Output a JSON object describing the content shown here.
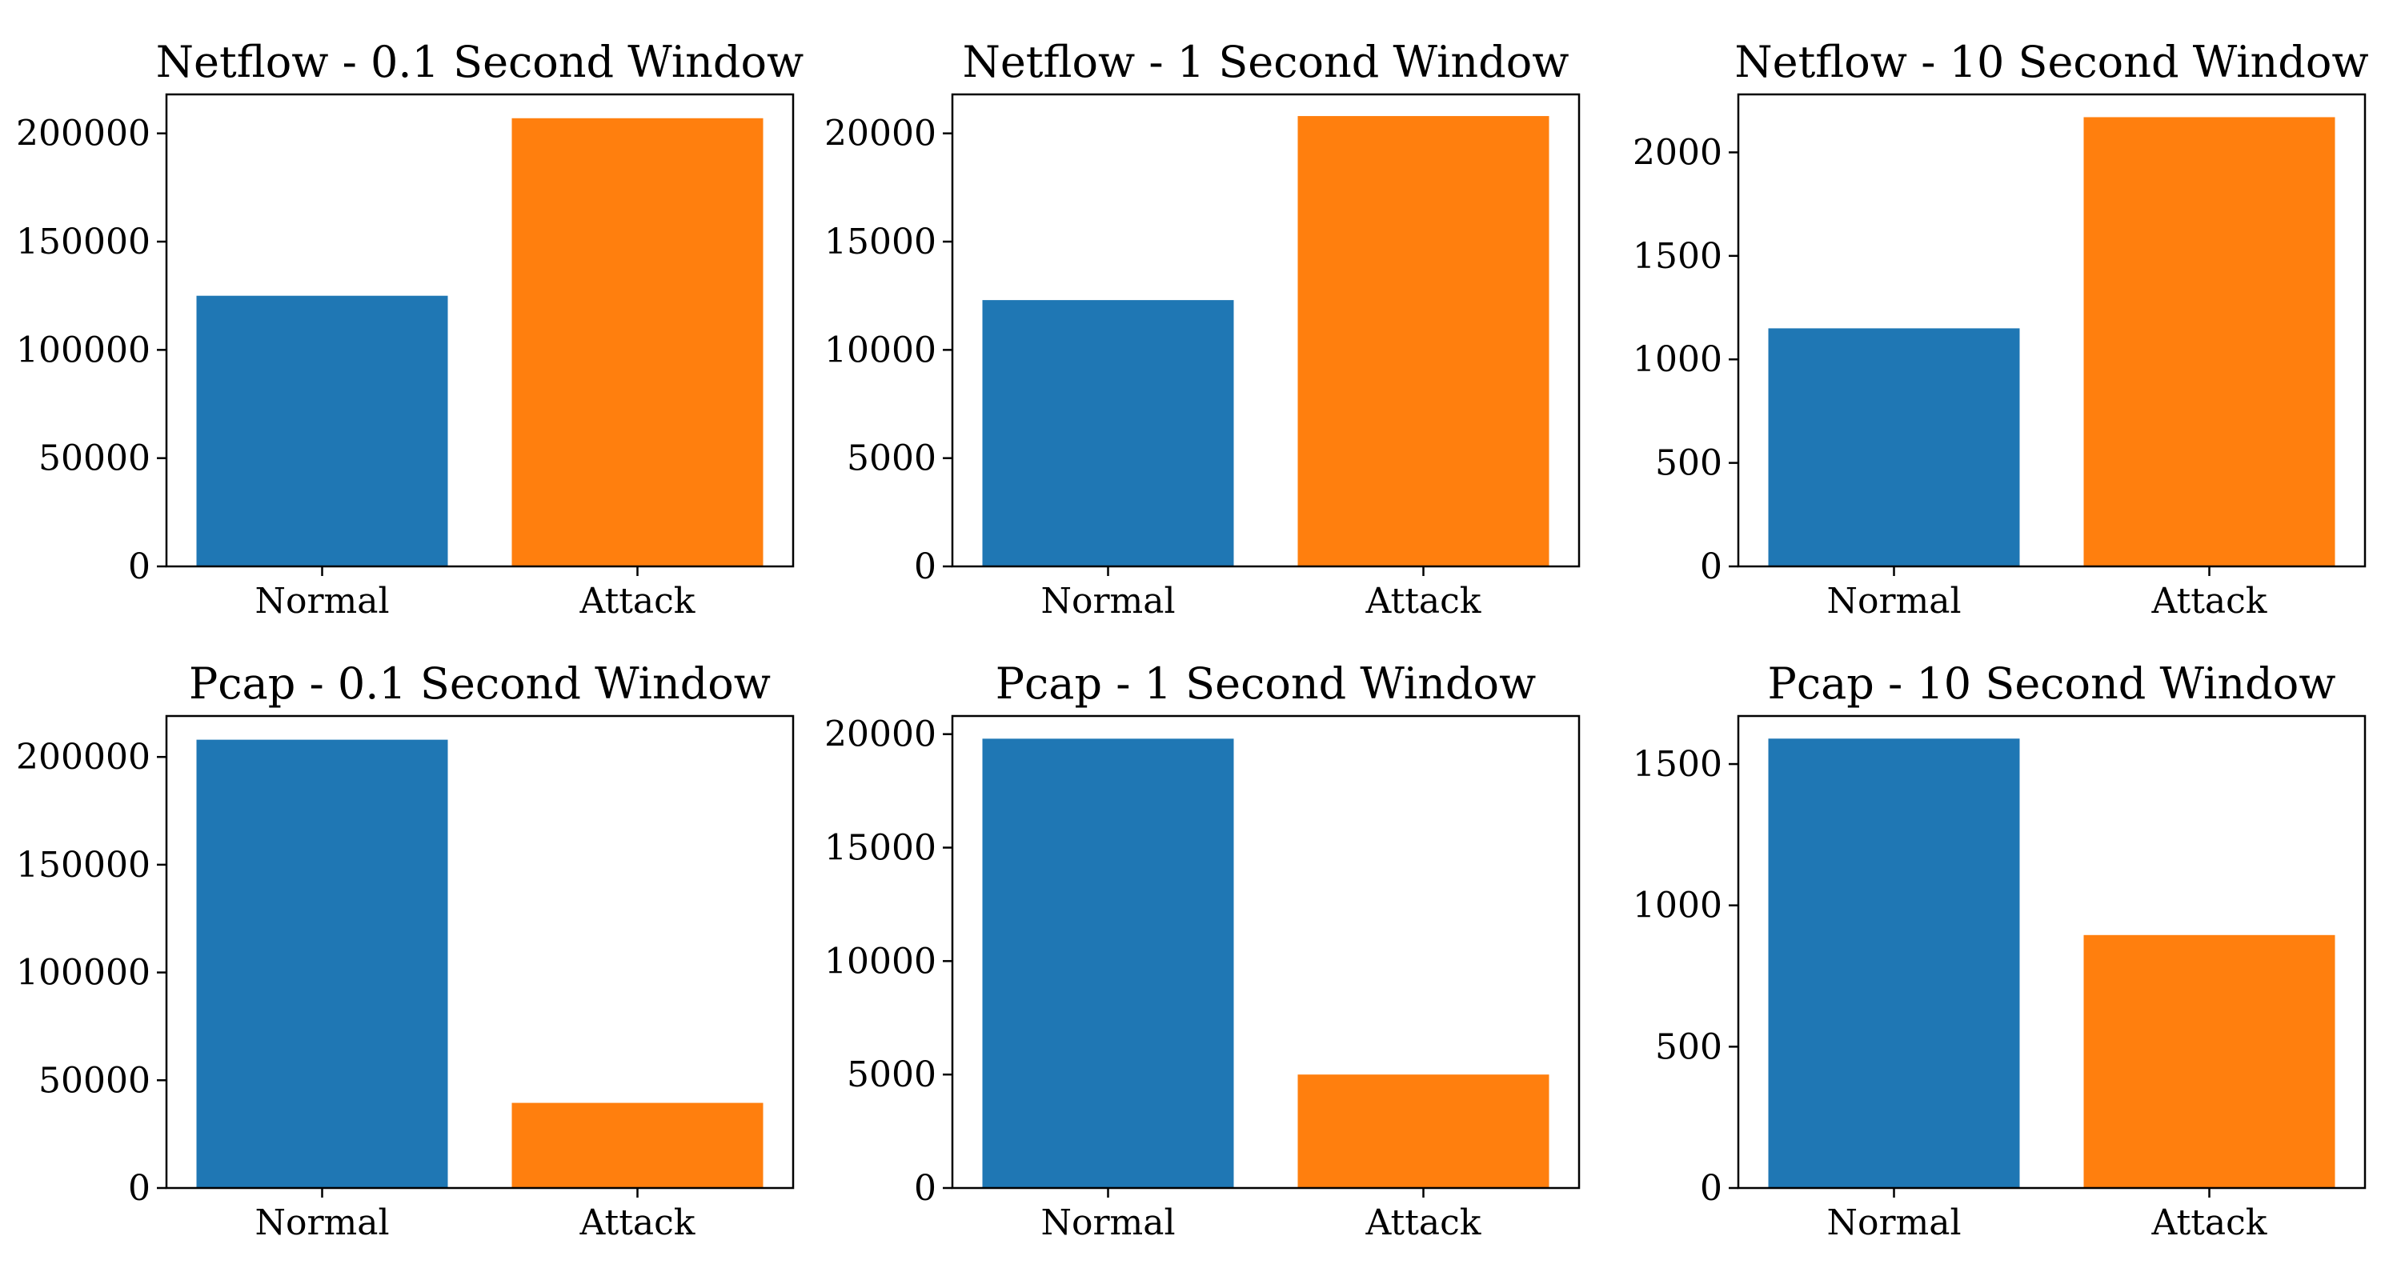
{
  "colors": {
    "normal": "#1f77b4",
    "attack": "#ff7f0e"
  },
  "chart_data": [
    {
      "type": "bar",
      "title": "Netflow - 0.1 Second Window",
      "categories": [
        "Normal",
        "Attack"
      ],
      "values": [
        125000,
        207000
      ],
      "ylim": [
        0,
        218000
      ],
      "yticks": [
        0,
        50000,
        100000,
        150000,
        200000
      ],
      "ytick_labels": [
        "0",
        "50000",
        "100000",
        "150000",
        "200000"
      ],
      "grid": false
    },
    {
      "type": "bar",
      "title": "Netflow - 1 Second Window",
      "categories": [
        "Normal",
        "Attack"
      ],
      "values": [
        12300,
        20800
      ],
      "ylim": [
        0,
        21800
      ],
      "yticks": [
        0,
        5000,
        10000,
        15000,
        20000
      ],
      "ytick_labels": [
        "0",
        "5000",
        "10000",
        "15000",
        "20000"
      ],
      "grid": false
    },
    {
      "type": "bar",
      "title": "Netflow - 10 Second Window",
      "categories": [
        "Normal",
        "Attack"
      ],
      "values": [
        1150,
        2170
      ],
      "ylim": [
        0,
        2280
      ],
      "yticks": [
        0,
        500,
        1000,
        1500,
        2000
      ],
      "ytick_labels": [
        "0",
        "500",
        "1000",
        "1500",
        "2000"
      ],
      "grid": false
    },
    {
      "type": "bar",
      "title": "Pcap - 0.1 Second Window",
      "categories": [
        "Normal",
        "Attack"
      ],
      "values": [
        208000,
        39500
      ],
      "ylim": [
        0,
        219000
      ],
      "yticks": [
        0,
        50000,
        100000,
        150000,
        200000
      ],
      "ytick_labels": [
        "0",
        "50000",
        "100000",
        "150000",
        "200000"
      ],
      "grid": false
    },
    {
      "type": "bar",
      "title": "Pcap - 1 Second Window",
      "categories": [
        "Normal",
        "Attack"
      ],
      "values": [
        19800,
        5000
      ],
      "ylim": [
        0,
        20800
      ],
      "yticks": [
        0,
        5000,
        10000,
        15000,
        20000
      ],
      "ytick_labels": [
        "0",
        "5000",
        "10000",
        "15000",
        "20000"
      ],
      "grid": false
    },
    {
      "type": "bar",
      "title": "Pcap - 10 Second Window",
      "categories": [
        "Normal",
        "Attack"
      ],
      "values": [
        1590,
        895
      ],
      "ylim": [
        0,
        1670
      ],
      "yticks": [
        0,
        500,
        1000,
        1500
      ],
      "ytick_labels": [
        "0",
        "500",
        "1000",
        "1500"
      ],
      "grid": false
    }
  ]
}
